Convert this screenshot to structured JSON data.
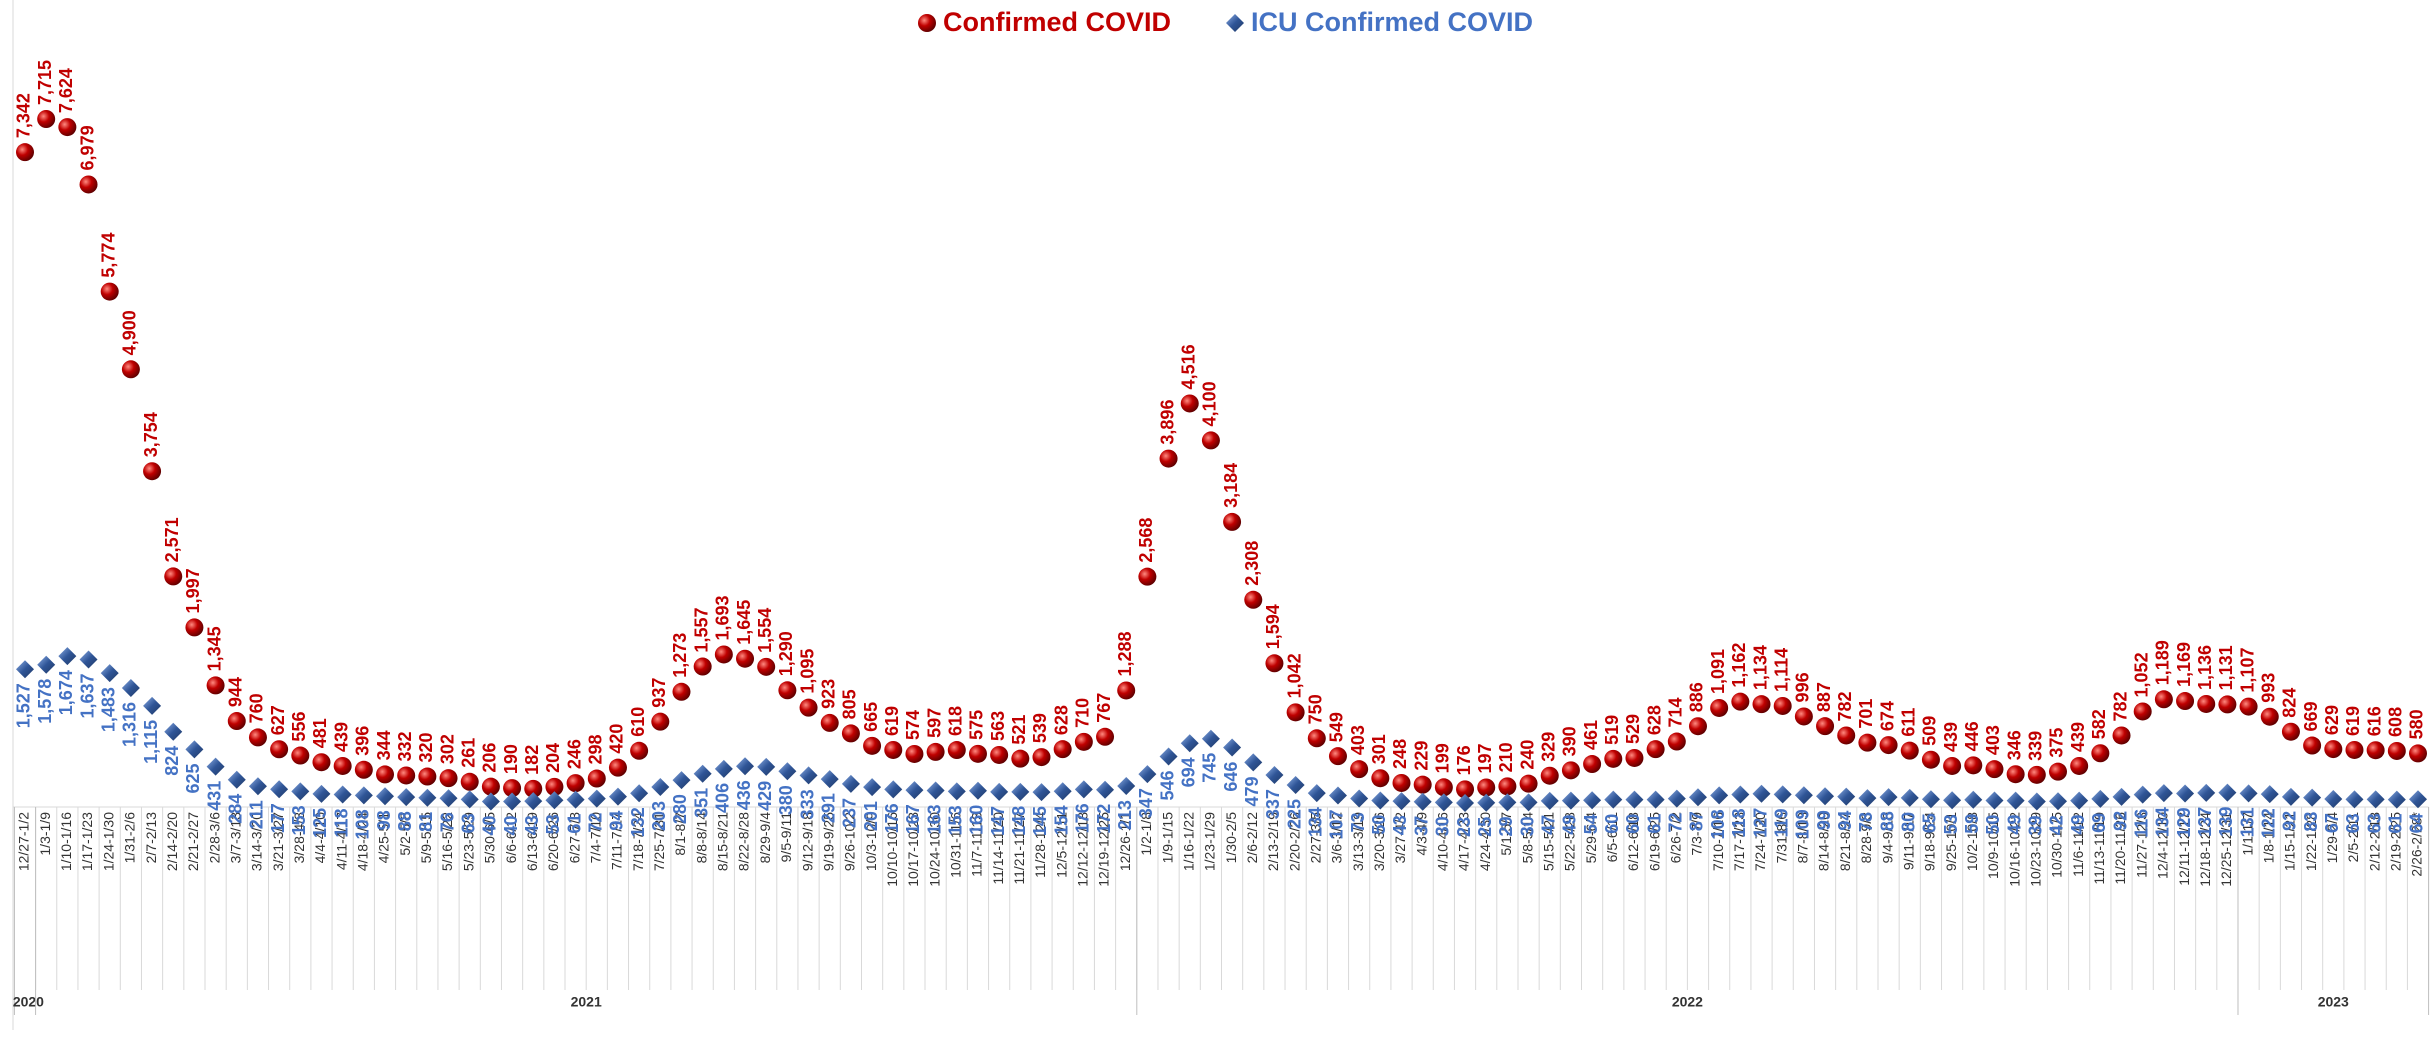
{
  "chart_data": {
    "type": "scatter",
    "categories": [
      "12/27-1/2",
      "1/3-1/9",
      "1/10-1/16",
      "1/17-1/23",
      "1/24-1/30",
      "1/31-2/6",
      "2/7-2/13",
      "2/14-2/20",
      "2/21-2/27",
      "2/28-3/6",
      "3/7-3/13",
      "3/14-3/20",
      "3/21-3/27",
      "3/28-4/3",
      "4/4-4/10",
      "4/11-4/17",
      "4/18-4/24",
      "4/25-5/1",
      "5/2-5/8",
      "5/9-5/15",
      "5/16-5/22",
      "5/23-5/29",
      "5/30-6/5",
      "6/6-6/12",
      "6/13-6/19",
      "6/20-6/26",
      "6/27-7/3",
      "7/4-7/10",
      "7/11-7/17",
      "7/18-7/24",
      "7/25-7/31",
      "8/1-8/7",
      "8/8-8/14",
      "8/15-8/21",
      "8/22-8/28",
      "8/29-9/4",
      "9/5-9/11",
      "9/12-9/18",
      "9/19-9/25",
      "9/26-10/2",
      "10/3-10/9",
      "10/10-10/16",
      "10/17-10/23",
      "10/24-10/30",
      "10/31-11/6",
      "11/7-11/13",
      "11/14-11/20",
      "11/21-11/27",
      "11/28-12/4",
      "12/5-12/11",
      "12/12-12/18",
      "12/19-12/25",
      "12/26-1/1",
      "1/2-1/8",
      "1/9-1/15",
      "1/16-1/22",
      "1/23-1/29",
      "1/30-2/5",
      "2/6-2/12",
      "2/13-2/19",
      "2/20-2/26",
      "2/27-3/5",
      "3/6-3/12",
      "3/13-3/19",
      "3/20-3/26",
      "3/27-4/2",
      "4/3-4/9",
      "4/10-4/16",
      "4/17-4/23",
      "4/24-4/30",
      "5/1-5/7",
      "5/8-5/14",
      "5/15-5/21",
      "5/22-5/28",
      "5/29-6/4",
      "6/5-6/11",
      "6/12-6/18",
      "6/19-6/25",
      "6/26-7/2",
      "7/3-7/9",
      "7/10-7/16",
      "7/17-7/23",
      "7/24-7/30",
      "7/31-8/6",
      "8/7-8/13",
      "8/14-8/20",
      "8/21-8/27",
      "8/28-9/3",
      "9/4-9/10",
      "9/11-9/17",
      "9/18-9/24",
      "9/25-10/1",
      "10/2-10/8",
      "10/9-10/15",
      "10/16-10/22",
      "10/23-10/29",
      "10/30-11/5",
      "11/6-11/12",
      "11/13-11/19",
      "11/20-11/26",
      "11/27-12/3",
      "12/4-12/10",
      "12/11-12/17",
      "12/18-12/24",
      "12/25-12/31",
      "1/1-1/7",
      "1/8-1/14",
      "1/15-1/21",
      "1/22-1/28",
      "1/29-2/4",
      "2/5-2/11",
      "2/12-2/18",
      "2/19-2/25",
      "2/26-2/28*"
    ],
    "x_groups": [
      {
        "label": "2020",
        "size": 1
      },
      {
        "label": "2021",
        "size": 52
      },
      {
        "label": "2022",
        "size": 52
      },
      {
        "label": "2023",
        "size": 9
      }
    ],
    "series": [
      {
        "name": "Confirmed COVID",
        "color": "#c00000",
        "marker": "circle",
        "values": [
          7342,
          7715,
          7624,
          6979,
          5774,
          4900,
          3754,
          2571,
          1997,
          1345,
          944,
          760,
          627,
          556,
          481,
          439,
          396,
          344,
          332,
          320,
          302,
          261,
          206,
          190,
          182,
          204,
          246,
          298,
          420,
          610,
          937,
          1273,
          1557,
          1693,
          1645,
          1554,
          1290,
          1095,
          923,
          805,
          665,
          619,
          574,
          597,
          618,
          575,
          563,
          521,
          539,
          628,
          710,
          767,
          1288,
          2568,
          3896,
          4516,
          4100,
          3184,
          2308,
          1594,
          1042,
          750,
          549,
          403,
          301,
          248,
          229,
          199,
          176,
          197,
          210,
          240,
          329,
          390,
          461,
          519,
          529,
          628,
          714,
          886,
          1091,
          1162,
          1134,
          1114,
          996,
          887,
          782,
          701,
          674,
          611,
          509,
          439,
          446,
          403,
          346,
          339,
          375,
          439,
          582,
          782,
          1052,
          1189,
          1169,
          1136,
          1131,
          1107,
          993,
          824,
          669,
          629,
          619,
          616,
          608,
          580
        ],
        "value_labels": [
          "7,342",
          "7,715",
          "7,624",
          "6,979",
          "5,774",
          "4,900",
          "3,754",
          "2,571",
          "1,997",
          "1,345",
          "944",
          "760",
          "627",
          "556",
          "481",
          "439",
          "396",
          "344",
          "332",
          "320",
          "302",
          "261",
          "206",
          "190",
          "182",
          "204",
          "246",
          "298",
          "420",
          "610",
          "937",
          "1,273",
          "1,557",
          "1,693",
          "1,645",
          "1,554",
          "1,290",
          "1,095",
          "923",
          "805",
          "665",
          "619",
          "574",
          "597",
          "618",
          "575",
          "563",
          "521",
          "539",
          "628",
          "710",
          "767",
          "1,288",
          "2,568",
          "3,896",
          "4,516",
          "4,100",
          "3,184",
          "2,308",
          "1,594",
          "1,042",
          "750",
          "549",
          "403",
          "301",
          "248",
          "229",
          "199",
          "176",
          "197",
          "210",
          "240",
          "329",
          "390",
          "461",
          "519",
          "529",
          "628",
          "714",
          "886",
          "1,091",
          "1,162",
          "1,134",
          "1,114",
          "996",
          "887",
          "782",
          "701",
          "674",
          "611",
          "509",
          "439",
          "446",
          "403",
          "346",
          "339",
          "375",
          "439",
          "582",
          "782",
          "1,052",
          "1,189",
          "1,169",
          "1,136",
          "1,131",
          "1,107",
          "993",
          "824",
          "669",
          "629",
          "619",
          "616",
          "608",
          "580"
        ]
      },
      {
        "name": "ICU Confirmed COVID",
        "color": "#4472c4",
        "marker": "diamond",
        "values": [
          1527,
          1578,
          1674,
          1637,
          1483,
          1316,
          1115,
          824,
          625,
          431,
          284,
          211,
          177,
          153,
          125,
          118,
          108,
          98,
          88,
          81,
          76,
          63,
          40,
          40,
          43,
          53,
          61,
          72,
          94,
          132,
          203,
          280,
          351,
          406,
          436,
          429,
          380,
          333,
          291,
          237,
          201,
          176,
          167,
          163,
          153,
          160,
          147,
          148,
          145,
          154,
          176,
          172,
          213,
          347,
          546,
          694,
          745,
          646,
          479,
          337,
          225,
          134,
          107,
          73,
          50,
          43,
          37,
          30,
          23,
          25,
          29,
          30,
          47,
          49,
          54,
          60,
          60,
          61,
          72,
          87,
          108,
          118,
          127,
          119,
          109,
          99,
          94,
          78,
          88,
          80,
          65,
          53,
          59,
          50,
          49,
          39,
          42,
          49,
          69,
          92,
          116,
          134,
          129,
          137,
          139,
          131,
          122,
          92,
          83,
          67,
          63,
          63,
          61,
          64
        ],
        "value_labels": [
          "1,527",
          "1,578",
          "1,674",
          "1,637",
          "1,483",
          "1,316",
          "1,115",
          "824",
          "625",
          "431",
          "284",
          "211",
          "177",
          "153",
          "125",
          "118",
          "108",
          "98",
          "88",
          "81",
          "76",
          "63",
          "40",
          "40",
          "43",
          "53",
          "61",
          "72",
          "94",
          "132",
          "203",
          "280",
          "351",
          "406",
          "436",
          "429",
          "380",
          "333",
          "291",
          "237",
          "201",
          "176",
          "167",
          "163",
          "153",
          "160",
          "147",
          "148",
          "145",
          "154",
          "176",
          "172",
          "213",
          "347",
          "546",
          "694",
          "745",
          "646",
          "479",
          "337",
          "225",
          "134",
          "107",
          "73",
          "50",
          "43",
          "37",
          "30",
          "23",
          "25",
          "29",
          "30",
          "47",
          "49",
          "54",
          "60",
          "60",
          "61",
          "72",
          "87",
          "108",
          "118",
          "127",
          "119",
          "109",
          "99",
          "94",
          "78",
          "88",
          "80",
          "65",
          "53",
          "59",
          "50",
          "49",
          "39",
          "42",
          "49",
          "69",
          "92",
          "116",
          "134",
          "129",
          "137",
          "139",
          "131",
          "122",
          "92",
          "83",
          "67",
          "63",
          "63",
          "61",
          "64"
        ]
      }
    ],
    "legend": "top"
  }
}
